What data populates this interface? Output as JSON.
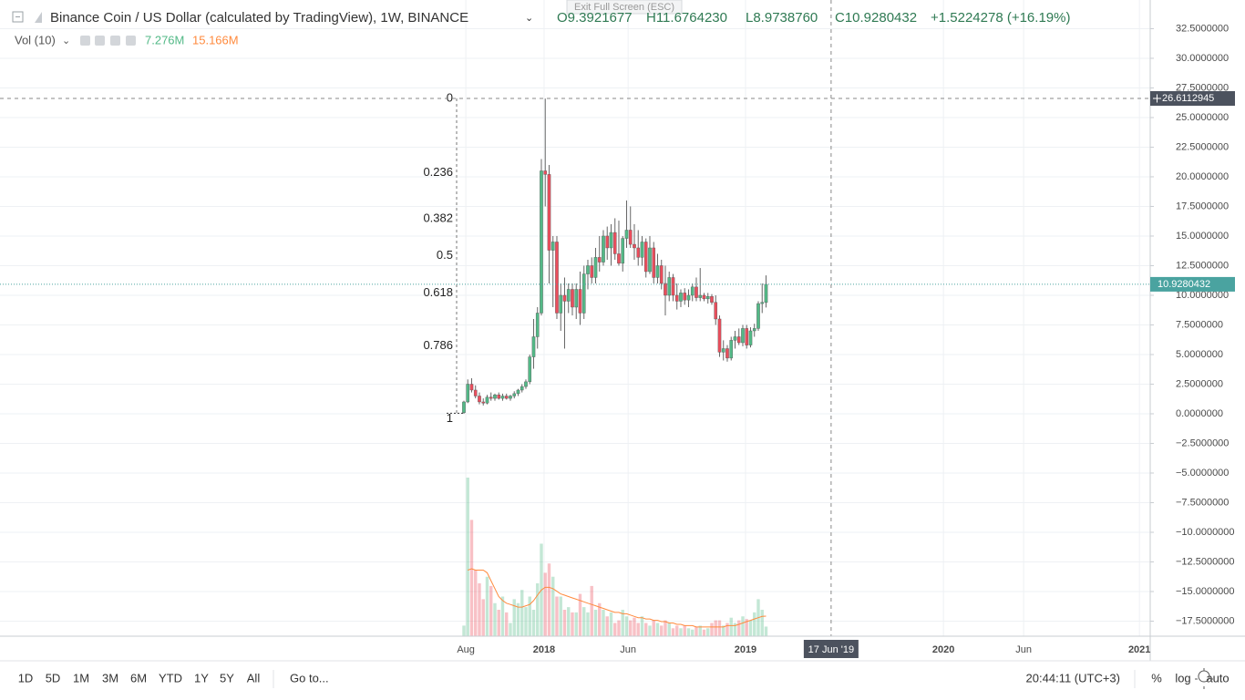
{
  "header": {
    "title": "Binance Coin / US Dollar (calculated by TradingView), 1W, BINANCE",
    "ohlc": [
      "O9.3921677",
      "H11.6764230",
      "L8.9738760",
      "C10.9280432",
      "+1.5224278 (+16.19%)"
    ],
    "tooltip": "Exit Full Screen (ESC)",
    "volume_label": "Vol (10)",
    "volume_value": "7.276M",
    "volume_ma_value": "15.166M"
  },
  "toolbar": {
    "ranges": [
      "1D",
      "5D",
      "1M",
      "3M",
      "6M",
      "YTD",
      "1Y",
      "5Y",
      "All"
    ],
    "goto": "Go to...",
    "time": "20:44:11 (UTC+3)",
    "options": [
      "%",
      "log",
      "auto"
    ]
  },
  "chart_data": {
    "type": "candlestick",
    "ylim": [
      -18.77,
      34.92
    ],
    "xlim": [
      -119.76,
      177.18
    ],
    "yticks": [
      {
        "value": 32.5,
        "label": "32.5000000"
      },
      {
        "value": 30,
        "label": "30.0000000"
      },
      {
        "value": 27.5,
        "label": "27.5000000"
      },
      {
        "value": 25,
        "label": "25.0000000"
      },
      {
        "value": 22.5,
        "label": "22.5000000"
      },
      {
        "value": 20,
        "label": "20.0000000"
      },
      {
        "value": 17.5,
        "label": "17.5000000"
      },
      {
        "value": 15,
        "label": "15.0000000"
      },
      {
        "value": 12.5,
        "label": "12.5000000"
      },
      {
        "value": 10,
        "label": "10.0000000"
      },
      {
        "value": 7.5,
        "label": "7.5000000"
      },
      {
        "value": 5,
        "label": "5.0000000"
      },
      {
        "value": 2.5,
        "label": "2.5000000"
      },
      {
        "value": 0,
        "label": "0.0000000"
      },
      {
        "value": -2.5,
        "label": "−2.5000000"
      },
      {
        "value": -5,
        "label": "−5.0000000"
      },
      {
        "value": -7.5,
        "label": "−7.5000000"
      },
      {
        "value": -10,
        "label": "−10.0000000"
      },
      {
        "value": -12.5,
        "label": "−12.5000000"
      },
      {
        "value": -15,
        "label": "−15.0000000"
      },
      {
        "value": -17.5,
        "label": "−17.5000000"
      }
    ],
    "xticks": [
      {
        "value": 0.5,
        "label": "Aug"
      },
      {
        "value": 20.7,
        "label": "2018"
      },
      {
        "value": 42.4,
        "label": "Jun"
      },
      {
        "value": 72.7,
        "label": "2019"
      },
      {
        "value": 123.8,
        "label": "2020"
      },
      {
        "value": 144.5,
        "label": "Jun"
      },
      {
        "value": 174.4,
        "label": "2021"
      }
    ],
    "grid": true,
    "up_color": "#53b987",
    "down_color": "#eb4d5c",
    "ma_color": "#ff8a3d",
    "candles": [
      [
        0.1,
        1.1,
        0.0,
        1.0
      ],
      [
        1.0,
        2.9,
        0.9,
        2.5
      ],
      [
        2.5,
        3.0,
        1.8,
        2.0
      ],
      [
        2.0,
        2.4,
        1.3,
        1.5
      ],
      [
        1.5,
        1.8,
        0.8,
        1.0
      ],
      [
        1.0,
        1.3,
        0.7,
        0.9
      ],
      [
        0.9,
        1.6,
        0.8,
        1.4
      ],
      [
        1.4,
        1.8,
        1.1,
        1.3
      ],
      [
        1.3,
        1.7,
        1.1,
        1.6
      ],
      [
        1.6,
        1.8,
        1.2,
        1.3
      ],
      [
        1.3,
        1.7,
        1.1,
        1.5
      ],
      [
        1.5,
        1.7,
        1.2,
        1.3
      ],
      [
        1.3,
        1.6,
        1.1,
        1.5
      ],
      [
        1.5,
        1.9,
        1.3,
        1.7
      ],
      [
        1.7,
        2.1,
        1.5,
        2.0
      ],
      [
        2.0,
        2.5,
        1.8,
        2.3
      ],
      [
        2.3,
        2.9,
        2.1,
        2.7
      ],
      [
        2.7,
        5.0,
        2.5,
        4.8
      ],
      [
        4.8,
        8.0,
        3.8,
        6.5
      ],
      [
        6.5,
        9.0,
        5.5,
        8.5
      ],
      [
        8.5,
        21.5,
        8.3,
        20.5
      ],
      [
        20.5,
        26.6,
        17.5,
        20.2
      ],
      [
        20.2,
        21.0,
        11.0,
        13.8
      ],
      [
        13.8,
        15.0,
        9.0,
        14.5
      ],
      [
        14.5,
        15.0,
        8.0,
        8.5
      ],
      [
        8.5,
        11.0,
        7.0,
        10.0
      ],
      [
        10.0,
        11.5,
        5.5,
        9.5
      ],
      [
        9.5,
        11.0,
        8.5,
        10.5
      ],
      [
        10.5,
        11.0,
        8.3,
        9.0
      ],
      [
        9.0,
        11.0,
        8.0,
        10.5
      ],
      [
        10.5,
        12.0,
        7.5,
        8.5
      ],
      [
        8.5,
        12.5,
        8.0,
        11.8
      ],
      [
        11.8,
        13.0,
        10.5,
        12.5
      ],
      [
        12.5,
        13.2,
        11.0,
        11.5
      ],
      [
        11.5,
        14.0,
        11.0,
        13.2
      ],
      [
        13.2,
        15.0,
        12.0,
        12.8
      ],
      [
        12.8,
        15.5,
        12.5,
        15.0
      ],
      [
        15.0,
        15.8,
        13.0,
        14.0
      ],
      [
        14.0,
        16.0,
        12.5,
        15.3
      ],
      [
        15.3,
        16.5,
        13.0,
        13.5
      ],
      [
        13.5,
        16.3,
        12.5,
        12.7
      ],
      [
        12.7,
        15.0,
        12.0,
        14.8
      ],
      [
        14.8,
        18.0,
        14.0,
        15.5
      ],
      [
        15.5,
        17.5,
        14.0,
        14.3
      ],
      [
        14.3,
        16.0,
        13.0,
        14.0
      ],
      [
        14.0,
        15.5,
        12.5,
        13.2
      ],
      [
        13.2,
        15.0,
        12.5,
        14.5
      ],
      [
        14.5,
        14.8,
        11.5,
        12.0
      ],
      [
        12.0,
        15.0,
        11.8,
        14.0
      ],
      [
        14.0,
        14.5,
        11.0,
        11.5
      ],
      [
        11.5,
        13.5,
        11.0,
        12.5
      ],
      [
        12.5,
        13.0,
        10.5,
        11.0
      ],
      [
        11.0,
        12.5,
        8.3,
        10.0
      ],
      [
        10.0,
        12.0,
        9.5,
        11.5
      ],
      [
        11.5,
        11.8,
        9.5,
        10.0
      ],
      [
        10.0,
        11.0,
        8.8,
        9.5
      ],
      [
        9.5,
        10.5,
        9.0,
        10.2
      ],
      [
        10.2,
        10.6,
        9.2,
        9.6
      ],
      [
        9.6,
        10.5,
        9.0,
        10.0
      ],
      [
        10.0,
        11.0,
        9.5,
        10.7
      ],
      [
        10.7,
        11.5,
        9.5,
        9.8
      ],
      [
        9.8,
        12.3,
        9.5,
        10.0
      ],
      [
        10.0,
        10.2,
        9.5,
        9.7
      ],
      [
        9.7,
        10.2,
        9.3,
        9.9
      ],
      [
        9.9,
        10.1,
        9.2,
        9.4
      ],
      [
        9.4,
        10.0,
        7.5,
        8.0
      ],
      [
        8.0,
        8.3,
        4.8,
        5.2
      ],
      [
        5.2,
        6.2,
        4.5,
        5.5
      ],
      [
        5.5,
        5.8,
        4.4,
        4.7
      ],
      [
        4.7,
        6.5,
        4.5,
        6.2
      ],
      [
        6.2,
        7.0,
        5.5,
        6.5
      ],
      [
        6.5,
        7.2,
        5.8,
        6.0
      ],
      [
        6.0,
        7.5,
        5.7,
        7.2
      ],
      [
        7.2,
        7.5,
        5.5,
        5.8
      ],
      [
        5.8,
        7.3,
        5.6,
        7.0
      ],
      [
        7.0,
        7.6,
        6.5,
        7.2
      ],
      [
        7.2,
        9.5,
        7.0,
        9.3
      ],
      [
        9.3,
        11.0,
        8.5,
        9.4
      ],
      [
        9.39,
        11.68,
        8.97,
        10.93
      ]
    ],
    "volume": [
      8,
      120,
      88,
      50,
      40,
      28,
      45,
      38,
      25,
      20,
      30,
      18,
      10,
      28,
      25,
      35,
      22,
      30,
      20,
      40,
      70,
      48,
      55,
      45,
      30,
      30,
      20,
      22,
      18,
      18,
      32,
      22,
      18,
      38,
      20,
      25,
      20,
      15,
      18,
      10,
      12,
      20,
      15,
      12,
      14,
      10,
      15,
      10,
      8,
      12,
      10,
      8,
      12,
      10,
      6,
      8,
      6,
      8,
      6,
      5,
      7,
      8,
      5,
      6,
      10,
      12,
      12,
      8,
      10,
      14,
      10,
      12,
      15,
      13,
      12,
      18,
      28,
      20,
      7.276
    ],
    "volume_ma": [
      null,
      50,
      51,
      50,
      50,
      50,
      48,
      42,
      36,
      30,
      27,
      25,
      24,
      23,
      22,
      22,
      23,
      24,
      27,
      31,
      35,
      37,
      37,
      36,
      34,
      32,
      31,
      30,
      29,
      28,
      27,
      26,
      25,
      24,
      23,
      22,
      21,
      20,
      19,
      18,
      18,
      17,
      17,
      16,
      15,
      14,
      14,
      13,
      13,
      12,
      12,
      11,
      11,
      10,
      10,
      9,
      9,
      8,
      8,
      8,
      7,
      7,
      7,
      7,
      7,
      7,
      7,
      7,
      8,
      8,
      8,
      9,
      10,
      11,
      12,
      13,
      14,
      15,
      15.166
    ],
    "fib": {
      "levels": [
        0,
        0.236,
        0.382,
        0.5,
        0.618,
        0.786,
        1
      ],
      "high": 26.61,
      "low": 0.05
    },
    "last_price": 10.9280432,
    "crosshair": {
      "x": 94.8,
      "x_label": "17 Jun '19",
      "y": 26.6112945
    }
  }
}
